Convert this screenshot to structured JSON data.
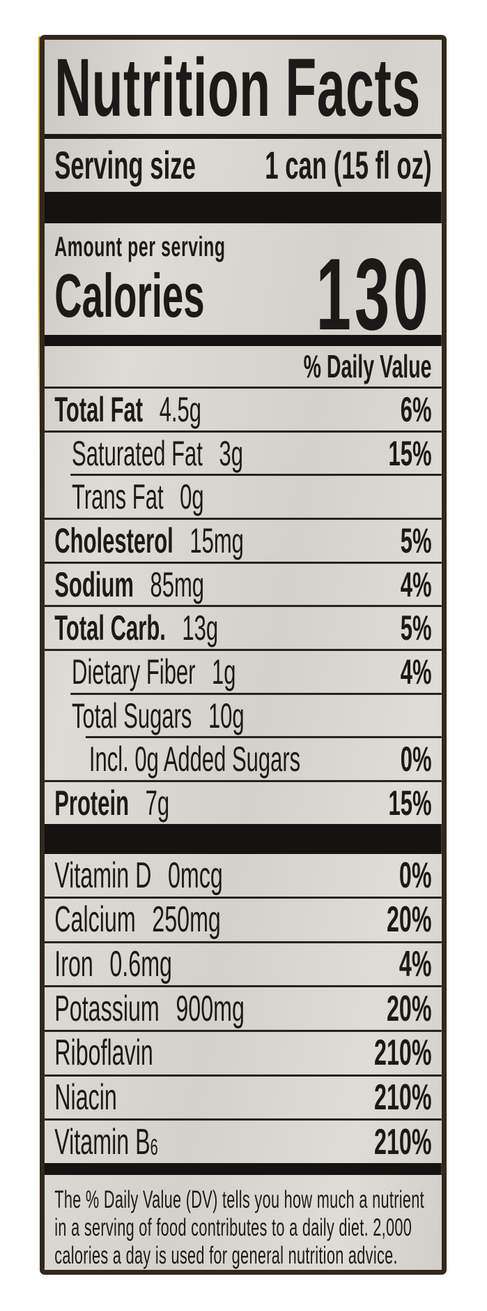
{
  "nutrition_label": {
    "title": "Nutrition Facts",
    "serving": {
      "label": "Serving size",
      "value": "1 can (15 fl oz)"
    },
    "calories": {
      "eyebrow": "Amount per serving",
      "label": "Calories",
      "value": "130"
    },
    "daily_value_header": "% Daily Value",
    "nutrients": [
      {
        "name": "Total Fat",
        "amount": "4.5g",
        "dv": "6%"
      },
      {
        "name": "Saturated Fat",
        "amount": "3g",
        "dv": "15%"
      },
      {
        "name": "Trans Fat",
        "amount": "0g",
        "dv": ""
      },
      {
        "name": "Cholesterol",
        "amount": "15mg",
        "dv": "5%"
      },
      {
        "name": "Sodium",
        "amount": "85mg",
        "dv": "4%"
      },
      {
        "name": "Total Carb.",
        "amount": "13g",
        "dv": "5%"
      },
      {
        "name": "Dietary Fiber",
        "amount": "1g",
        "dv": "4%"
      },
      {
        "name": "Total Sugars",
        "amount": "10g",
        "dv": ""
      },
      {
        "name": "Incl. 0g Added Sugars",
        "amount": "",
        "dv": "0%"
      },
      {
        "name": "Protein",
        "amount": "7g",
        "dv": "15%"
      }
    ],
    "micronutrients": [
      {
        "name": "Vitamin D",
        "amount": "0mcg",
        "dv": "0%"
      },
      {
        "name": "Calcium",
        "amount": "250mg",
        "dv": "20%"
      },
      {
        "name": "Iron",
        "amount": "0.6mg",
        "dv": "4%"
      },
      {
        "name": "Potassium",
        "amount": "900mg",
        "dv": "20%"
      },
      {
        "name": "Riboflavin",
        "amount": "",
        "dv": "210%"
      },
      {
        "name": "Niacin",
        "amount": "",
        "dv": "210%"
      },
      {
        "name": "Vitamin B",
        "name_sub": "6",
        "amount": "",
        "dv": "210%"
      }
    ],
    "footnote": "The % Daily Value (DV) tells you how much a nutrient in a serving of food contributes to a daily diet. 2,000 calories a day is used for general nutrition advice.",
    "colors": {
      "page_background": "#ffffff",
      "label_background": "#d8d5d0",
      "ink": "#1c1916",
      "border": "#33271c",
      "bar": "#15120f",
      "can_edge": "#c9a52b"
    }
  }
}
